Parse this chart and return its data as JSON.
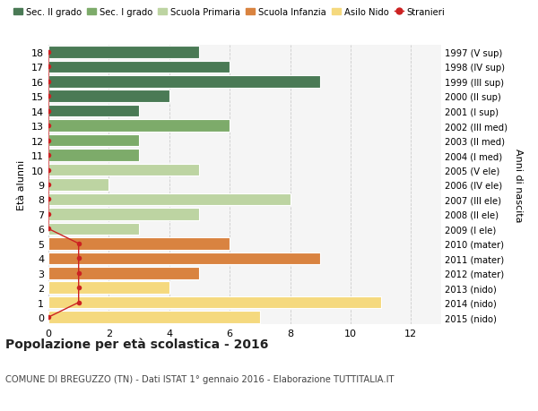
{
  "ages": [
    18,
    17,
    16,
    15,
    14,
    13,
    12,
    11,
    10,
    9,
    8,
    7,
    6,
    5,
    4,
    3,
    2,
    1,
    0
  ],
  "labels_right": [
    "1997 (V sup)",
    "1998 (IV sup)",
    "1999 (III sup)",
    "2000 (II sup)",
    "2001 (I sup)",
    "2002 (III med)",
    "2003 (II med)",
    "2004 (I med)",
    "2005 (V ele)",
    "2006 (IV ele)",
    "2007 (III ele)",
    "2008 (II ele)",
    "2009 (I ele)",
    "2010 (mater)",
    "2011 (mater)",
    "2012 (mater)",
    "2013 (nido)",
    "2014 (nido)",
    "2015 (nido)"
  ],
  "bar_values": [
    5,
    6,
    9,
    4,
    3,
    6,
    3,
    3,
    5,
    2,
    8,
    5,
    3,
    6,
    9,
    5,
    4,
    11,
    7
  ],
  "bar_colors": [
    "#4a7a55",
    "#4a7a55",
    "#4a7a55",
    "#4a7a55",
    "#4a7a55",
    "#7dab6a",
    "#7dab6a",
    "#7dab6a",
    "#bdd4a2",
    "#bdd4a2",
    "#bdd4a2",
    "#bdd4a2",
    "#bdd4a2",
    "#d98340",
    "#d98340",
    "#d98340",
    "#f5d97e",
    "#f5d97e",
    "#f5d97e"
  ],
  "stranieri_ages": [
    18,
    17,
    16,
    15,
    14,
    13,
    12,
    11,
    10,
    9,
    8,
    7,
    6,
    5,
    4,
    3,
    2,
    1,
    0
  ],
  "stranieri_vals": [
    0,
    0,
    0,
    0,
    0,
    0,
    0,
    0,
    0,
    0,
    0,
    0,
    0,
    1,
    1,
    1,
    1,
    1,
    0
  ],
  "color_sec2": "#4a7a55",
  "color_sec1": "#7dab6a",
  "color_primaria": "#bdd4a2",
  "color_infanzia": "#d98340",
  "color_nido": "#f5d97e",
  "color_stranieri": "#cc2222",
  "title": "Popolazione per età scolastica - 2016",
  "subtitle": "COMUNE DI BREGUZZO (TN) - Dati ISTAT 1° gennaio 2016 - Elaborazione TUTTITALIA.IT",
  "ylabel_left": "Età alunni",
  "ylabel_right": "Anni di nascita",
  "xlim": [
    0,
    13
  ],
  "ylim_min": -0.5,
  "ylim_max": 18.5,
  "bg_color": "#f5f5f5",
  "grid_color": "#cccccc"
}
